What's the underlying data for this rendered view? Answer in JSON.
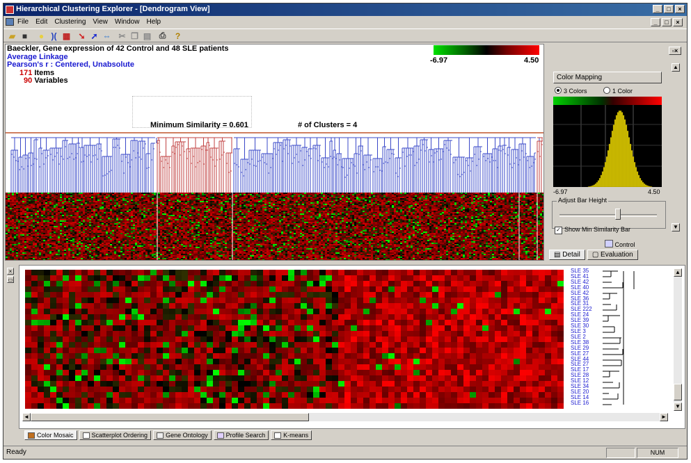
{
  "window": {
    "title": "Hierarchical Clustering Explorer - [Dendrogram View]"
  },
  "menu": [
    "File",
    "Edit",
    "Clustering",
    "View",
    "Window",
    "Help"
  ],
  "toolbar": [
    "open-icon",
    "save-icon",
    "sun-icon",
    "brackets-icon",
    "grid-icon",
    "red-arrow-icon",
    "blue-arrow-icon",
    "swap-icon",
    "cut-icon",
    "copy-icon",
    "paste-icon",
    "print-icon",
    "help-icon"
  ],
  "dendrogram": {
    "title": "Baeckler, Gene expression of 42 Control and 48 SLE patients",
    "linkage": "Average Linkage",
    "metric": "Pearson's r : Centered, Unabsolute",
    "items_count": "171",
    "items_label": "Items",
    "variables_count": "90",
    "variables_label": "Variables",
    "min_similarity": "Minimum Similarity = 0.601",
    "num_clusters": "# of Clusters = 4",
    "color_min": "-6.97",
    "color_max": "4.50"
  },
  "panel": {
    "color_mapping_label": "Color Mapping",
    "radio_3": "3 Colors",
    "radio_1": "1 Color",
    "hist_min": "-6.97",
    "hist_max": "4.50",
    "adjust_label": "Adjust Bar Height",
    "show_min_label": "Show Min Similarity Bar",
    "control_label": "Control",
    "tab_detail": "Detail",
    "tab_evaluation": "Evaluation"
  },
  "mosaic": {
    "row_labels": [
      "SLE 35",
      "SLE 41",
      "SLE 42",
      "SLE 40",
      "SLE 42",
      "SLE 36",
      "SLE 31",
      "SLE 222",
      "SLE 24",
      "SLE 39",
      "SLE 30",
      "SLE 3",
      "SLE 2",
      "SLE 38",
      "SLE 29",
      "SLE 27",
      "SLE 44",
      "SLE 27",
      "SLE 17",
      "SLE 28",
      "SLE 12",
      "SLE 34",
      "SLE 20",
      "SLE 14",
      "SLE 16"
    ]
  },
  "bottom_tabs": [
    "Color Mosaic",
    "Scatterplot Ordering",
    "Gene Ontology",
    "Profile Search",
    "K-means"
  ],
  "status": {
    "text": "Ready",
    "num": "NUM"
  },
  "colors": {
    "cluster_blue": "#3a48c8",
    "cluster_red": "#c04040",
    "title_blue": "#1a1ad0",
    "count_red": "#cc0000"
  }
}
